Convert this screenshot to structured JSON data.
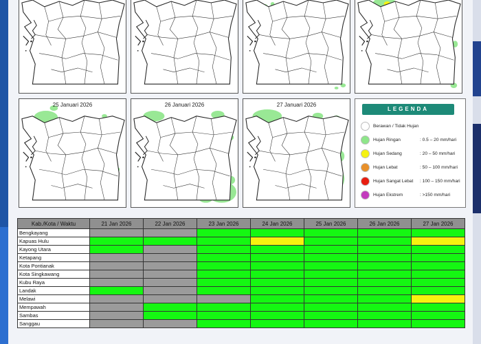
{
  "maps": {
    "top": [
      {
        "title": ""
      },
      {
        "title": ""
      },
      {
        "title": ""
      },
      {
        "title": ""
      }
    ],
    "bottom": [
      {
        "title": "25 Januari 2026"
      },
      {
        "title": "26 Januari 2026"
      },
      {
        "title": "27 Januari 2026"
      }
    ]
  },
  "legend": {
    "title": "LEGENDA",
    "items": [
      {
        "label": "Berawan / Tidak Hujan",
        "range": "",
        "color": "#ffffff"
      },
      {
        "label": "Hujan Ringan",
        "range": ": 0.5 – 20 mm/hari",
        "color": "#8ee68a"
      },
      {
        "label": "Hujan Sedang",
        "range": ": 20 – 50 mm/hari",
        "color": "#f5f212"
      },
      {
        "label": "Hujan Lebat",
        "range": ": 50 – 100 mm/hari",
        "color": "#e8902a"
      },
      {
        "label": "Hujan Sangat Lebat",
        "range": ": 100 – 150 mm/hari",
        "color": "#e81d10"
      },
      {
        "label": "Hujan Ekstrem",
        "range": ": >150 mm/hari",
        "color": "#c33bbd"
      }
    ]
  },
  "table": {
    "header": [
      "Kab./Kota / Waktu",
      "21 Jan 2026",
      "22 Jan 2026",
      "23 Jan 2026",
      "24 Jan 2026",
      "25 Jan 2026",
      "26 Jan 2026",
      "27 Jan 2026"
    ],
    "rows": [
      {
        "name": "Bengkayang",
        "status": [
          "x",
          "x",
          "g",
          "g",
          "g",
          "g",
          "g"
        ]
      },
      {
        "name": "Kapuas Hulu",
        "status": [
          "g",
          "g",
          "g",
          "y",
          "g",
          "g",
          "y"
        ]
      },
      {
        "name": "Kayong Utara",
        "status": [
          "g",
          "x",
          "g",
          "g",
          "g",
          "g",
          "g"
        ]
      },
      {
        "name": "Ketapang",
        "status": [
          "x",
          "x",
          "g",
          "g",
          "g",
          "g",
          "g"
        ]
      },
      {
        "name": "Kota Pontianak",
        "status": [
          "x",
          "x",
          "g",
          "g",
          "g",
          "g",
          "g"
        ]
      },
      {
        "name": "Kota Singkawang",
        "status": [
          "x",
          "x",
          "g",
          "g",
          "g",
          "g",
          "g"
        ]
      },
      {
        "name": "Kubu Raya",
        "status": [
          "x",
          "x",
          "g",
          "g",
          "g",
          "g",
          "g"
        ]
      },
      {
        "name": "Landak",
        "status": [
          "g",
          "x",
          "g",
          "g",
          "g",
          "g",
          "g"
        ]
      },
      {
        "name": "Melawi",
        "status": [
          "x",
          "x",
          "x",
          "g",
          "g",
          "g",
          "y"
        ]
      },
      {
        "name": "Mempawah",
        "status": [
          "x",
          "g",
          "g",
          "g",
          "g",
          "g",
          "g"
        ]
      },
      {
        "name": "Sambas",
        "status": [
          "x",
          "g",
          "g",
          "g",
          "g",
          "g",
          "g"
        ]
      },
      {
        "name": "Sanggau",
        "status": [
          "x",
          "x",
          "g",
          "g",
          "g",
          "g",
          "g"
        ]
      }
    ]
  }
}
